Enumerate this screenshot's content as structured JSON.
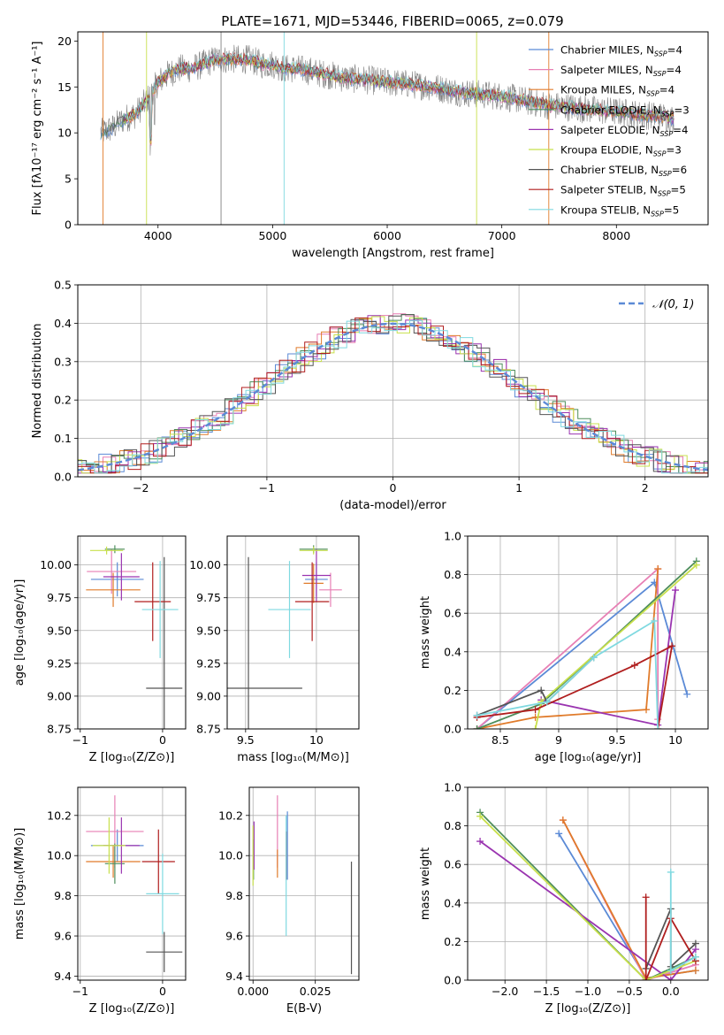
{
  "title": "PLATE=1671, MJD=53446, FIBERID=0065, z=0.079",
  "colors": {
    "Chabrier MILES": "#5b8ad6",
    "Salpeter MILES": "#e77fb4",
    "Kroupa MILES": "#e07b2b",
    "Chabrier ELODIE": "#4e8e5c",
    "Salpeter ELODIE": "#9a34b0",
    "Kroupa ELODIE": "#c8e04c",
    "Chabrier STELIB": "#555555",
    "Salpeter STELIB": "#b01e1e",
    "Kroupa STELIB": "#7fd9e0"
  },
  "chart_data": [
    {
      "id": "spectrum",
      "type": "line",
      "xlabel": "wavelength [Angstrom, rest frame]",
      "ylabel": "Flux [fλ10⁻¹⁷ erg cm⁻² s⁻¹ A⁻¹]",
      "xlim": [
        3300,
        8800
      ],
      "ylim": [
        0,
        21
      ],
      "xticks": [
        4000,
        5000,
        6000,
        7000,
        8000
      ],
      "yticks": [
        0,
        5,
        10,
        15,
        20
      ],
      "legend_position": "top-right",
      "legend": [
        {
          "model": "Chabrier MILES",
          "label": "Chabrier MILES, N",
          "sub": "SSP",
          "tail": "=4"
        },
        {
          "model": "Salpeter MILES",
          "label": "Salpeter MILES, N",
          "sub": "SSP",
          "tail": "=4"
        },
        {
          "model": "Kroupa MILES",
          "label": "Kroupa MILES, N",
          "sub": "SSP",
          "tail": "=4"
        },
        {
          "model": "Chabrier ELODIE",
          "label": "Chabrier ELODIE, N",
          "sub": "SSP",
          "tail": "=3"
        },
        {
          "model": "Salpeter ELODIE",
          "label": "Salpeter ELODIE, N",
          "sub": "SSP",
          "tail": "=4"
        },
        {
          "model": "Kroupa ELODIE",
          "label": "Kroupa ELODIE, N",
          "sub": "SSP",
          "tail": "=3"
        },
        {
          "model": "Chabrier STELIB",
          "label": "Chabrier STELIB, N",
          "sub": "SSP",
          "tail": "=6"
        },
        {
          "model": "Salpeter STELIB",
          "label": "Salpeter STELIB, N",
          "sub": "SSP",
          "tail": "=5"
        },
        {
          "model": "Kroupa STELIB",
          "label": "Kroupa STELIB, N",
          "sub": "SSP",
          "tail": "=5"
        }
      ],
      "continuum": [
        [
          3500,
          10.0
        ],
        [
          3600,
          10.5
        ],
        [
          3700,
          11.5
        ],
        [
          3800,
          12.0
        ],
        [
          3900,
          13.5
        ],
        [
          4000,
          15.5
        ],
        [
          4100,
          16.5
        ],
        [
          4200,
          17.0
        ],
        [
          4300,
          17.0
        ],
        [
          4400,
          17.5
        ],
        [
          4500,
          18.0
        ],
        [
          4600,
          18.0
        ],
        [
          4700,
          18.0
        ],
        [
          4800,
          18.0
        ],
        [
          4900,
          17.5
        ],
        [
          5000,
          17.5
        ],
        [
          5100,
          17.0
        ],
        [
          5200,
          17.0
        ],
        [
          5300,
          16.8
        ],
        [
          5400,
          16.5
        ],
        [
          5500,
          16.3
        ],
        [
          5600,
          16.0
        ],
        [
          5800,
          15.8
        ],
        [
          6000,
          15.5
        ],
        [
          6200,
          15.3
        ],
        [
          6400,
          15.0
        ],
        [
          6600,
          14.5
        ],
        [
          6800,
          14.2
        ],
        [
          7000,
          14.0
        ],
        [
          7200,
          13.5
        ],
        [
          7400,
          13.0
        ],
        [
          7600,
          12.8
        ],
        [
          7800,
          12.5
        ],
        [
          8000,
          12.3
        ],
        [
          8200,
          12.0
        ],
        [
          8400,
          11.8
        ],
        [
          8500,
          11.5
        ]
      ]
    },
    {
      "id": "residuals",
      "type": "histogram",
      "xlabel": "(data-model)/error",
      "ylabel": "Normed distribution",
      "xlim": [
        -2.5,
        2.5
      ],
      "ylim": [
        0,
        0.5
      ],
      "xticks": [
        -2,
        -1,
        0,
        1,
        2
      ],
      "yticks": [
        0.0,
        0.1,
        0.2,
        0.3,
        0.4,
        0.5
      ],
      "grid": true,
      "legend_position": "top-right",
      "reference": {
        "name": "𝒩(0, 1)",
        "mean": 0,
        "sigma": 1
      }
    },
    {
      "id": "age-vs-Z",
      "type": "errorbar",
      "xlabel": "Z [log₁₀(Z/Z⊙)]",
      "ylabel": "age  [log₁₀(age/yr)]",
      "xlim": [
        -1.03,
        0.28
      ],
      "ylim": [
        8.75,
        10.22
      ],
      "xticks": [
        -1,
        0
      ],
      "yticks": [
        8.75,
        9.0,
        9.25,
        9.5,
        9.75,
        10.0
      ],
      "grid": true,
      "points": [
        {
          "model": "Chabrier MILES",
          "x": -0.55,
          "xerr": 0.32,
          "y": 9.89,
          "yerr": 0.13
        },
        {
          "model": "Salpeter MILES",
          "x": -0.62,
          "xerr": 0.3,
          "y": 9.95,
          "yerr": 0.17
        },
        {
          "model": "Kroupa MILES",
          "x": -0.6,
          "xerr": 0.33,
          "y": 9.81,
          "yerr": 0.13
        },
        {
          "model": "Chabrier ELODIE",
          "x": -0.58,
          "xerr": 0.12,
          "y": 10.12,
          "yerr": 0.03
        },
        {
          "model": "Salpeter ELODIE",
          "x": -0.5,
          "xerr": 0.22,
          "y": 9.91,
          "yerr": 0.18
        },
        {
          "model": "Kroupa ELODIE",
          "x": -0.68,
          "xerr": 0.2,
          "y": 10.11,
          "yerr": 0.03
        },
        {
          "model": "Chabrier STELIB",
          "x": 0.02,
          "xerr": 0.22,
          "y": 9.06,
          "yerr": 1.0
        },
        {
          "model": "Salpeter STELIB",
          "x": -0.12,
          "xerr": 0.22,
          "y": 9.72,
          "yerr": 0.3
        },
        {
          "model": "Kroupa STELIB",
          "x": -0.03,
          "xerr": 0.22,
          "y": 9.66,
          "yerr": 0.37
        }
      ]
    },
    {
      "id": "age-vs-mass",
      "type": "errorbar",
      "xlabel": "mass [log₁₀(M/M⊙)]",
      "ylabel": "",
      "xlim": [
        9.37,
        10.3
      ],
      "ylim": [
        8.75,
        10.22
      ],
      "xticks": [
        9.5,
        10.0
      ],
      "yticks": [
        8.75,
        9.0,
        9.25,
        9.5,
        9.75,
        10.0
      ],
      "grid": true,
      "points": [
        {
          "model": "Chabrier MILES",
          "x": 10.0,
          "xerr": 0.08,
          "y": 9.89,
          "yerr": 0.13
        },
        {
          "model": "Salpeter MILES",
          "x": 10.1,
          "xerr": 0.08,
          "y": 9.81,
          "yerr": 0.13
        },
        {
          "model": "Kroupa MILES",
          "x": 9.98,
          "xerr": 0.07,
          "y": 9.86,
          "yerr": 0.15
        },
        {
          "model": "Chabrier ELODIE",
          "x": 9.98,
          "xerr": 0.1,
          "y": 10.12,
          "yerr": 0.03
        },
        {
          "model": "Salpeter ELODIE",
          "x": 10.0,
          "xerr": 0.1,
          "y": 9.92,
          "yerr": 0.2
        },
        {
          "model": "Kroupa ELODIE",
          "x": 9.98,
          "xerr": 0.1,
          "y": 10.11,
          "yerr": 0.03
        },
        {
          "model": "Chabrier STELIB",
          "x": 9.52,
          "xerr": 0.38,
          "y": 9.06,
          "yerr": 1.0
        },
        {
          "model": "Salpeter STELIB",
          "x": 9.97,
          "xerr": 0.12,
          "y": 9.72,
          "yerr": 0.3
        },
        {
          "model": "Kroupa STELIB",
          "x": 9.81,
          "xerr": 0.15,
          "y": 9.66,
          "yerr": 0.37
        }
      ]
    },
    {
      "id": "mass-vs-Z",
      "type": "errorbar",
      "xlabel": "Z [log₁₀(Z/Z⊙)]",
      "ylabel": "mass [log₁₀(M/M⊙)]",
      "xlim": [
        -1.03,
        0.28
      ],
      "ylim": [
        9.38,
        10.34
      ],
      "xticks": [
        -1,
        0
      ],
      "yticks": [
        9.4,
        9.6,
        9.8,
        10.0,
        10.2
      ],
      "grid": true,
      "points": [
        {
          "model": "Chabrier MILES",
          "x": -0.55,
          "xerr": 0.32,
          "y": 10.05,
          "yerr": 0.08
        },
        {
          "model": "Salpeter MILES",
          "x": -0.58,
          "xerr": 0.35,
          "y": 10.12,
          "yerr": 0.18
        },
        {
          "model": "Kroupa MILES",
          "x": -0.6,
          "xerr": 0.33,
          "y": 9.97,
          "yerr": 0.08
        },
        {
          "model": "Chabrier ELODIE",
          "x": -0.58,
          "xerr": 0.12,
          "y": 9.96,
          "yerr": 0.1
        },
        {
          "model": "Salpeter ELODIE",
          "x": -0.5,
          "xerr": 0.22,
          "y": 10.05,
          "yerr": 0.14
        },
        {
          "model": "Kroupa ELODIE",
          "x": -0.65,
          "xerr": 0.2,
          "y": 10.05,
          "yerr": 0.14
        },
        {
          "model": "Chabrier STELIB",
          "x": 0.02,
          "xerr": 0.22,
          "y": 9.52,
          "yerr": 0.1
        },
        {
          "model": "Salpeter STELIB",
          "x": -0.05,
          "xerr": 0.2,
          "y": 9.97,
          "yerr": 0.16
        },
        {
          "model": "Kroupa STELIB",
          "x": 0.0,
          "xerr": 0.2,
          "y": 9.81,
          "yerr": 0.2
        }
      ]
    },
    {
      "id": "mass-vs-EBV",
      "type": "errorbar",
      "xlabel": "E(B-V)",
      "ylabel": "",
      "xlim": [
        -0.0015,
        0.0425
      ],
      "ylim": [
        9.38,
        10.34
      ],
      "xticks": [
        0.0,
        0.025
      ],
      "xtick_labels": [
        "0.000",
        "0.025"
      ],
      "yticks": [
        9.4,
        9.6,
        9.8,
        10.0,
        10.2
      ],
      "grid": true,
      "points": [
        {
          "model": "Chabrier MILES",
          "x": 0.0138,
          "xerr": 0,
          "y": 10.05,
          "yerr": 0.17
        },
        {
          "model": "Salpeter MILES",
          "x": 0.0098,
          "xerr": 0,
          "y": 10.12,
          "yerr": 0.18
        },
        {
          "model": "Kroupa MILES",
          "x": 0.0098,
          "xerr": 0,
          "y": 9.96,
          "yerr": 0.07
        },
        {
          "model": "Chabrier ELODIE",
          "x": 0.0002,
          "xerr": 0,
          "y": 9.98,
          "yerr": 0.1
        },
        {
          "model": "Salpeter ELODIE",
          "x": 0.0004,
          "xerr": 0,
          "y": 10.05,
          "yerr": 0.12
        },
        {
          "model": "Kroupa ELODIE",
          "x": 0.0,
          "xerr": 0,
          "y": 10.0,
          "yerr": 0.15
        },
        {
          "model": "Chabrier STELIB",
          "x": 0.0395,
          "xerr": 0,
          "y": 9.69,
          "yerr": 0.28
        },
        {
          "model": "Salpeter STELIB",
          "x": 0.0133,
          "xerr": 0,
          "y": 10.0,
          "yerr": 0.12
        },
        {
          "model": "Kroupa STELIB",
          "x": 0.0133,
          "xerr": 0,
          "y": 9.9,
          "yerr": 0.3
        }
      ]
    },
    {
      "id": "weight-vs-age",
      "type": "line",
      "xlabel": "age  [log₁₀(age/yr)]",
      "ylabel": "mass weight",
      "xlim": [
        8.22,
        10.28
      ],
      "ylim": [
        0.0,
        1.0
      ],
      "xticks": [
        8.5,
        9.0,
        9.5,
        10.0
      ],
      "yticks": [
        0.0,
        0.2,
        0.4,
        0.6,
        0.8,
        1.0
      ],
      "grid": true,
      "series": [
        {
          "model": "Chabrier MILES",
          "points": [
            [
              8.3,
              0.0
            ],
            [
              9.82,
              0.76
            ],
            [
              10.1,
              0.18
            ]
          ]
        },
        {
          "model": "Salpeter MILES",
          "points": [
            [
              8.3,
              0.0
            ],
            [
              9.85,
              0.83
            ],
            [
              9.85,
              0.05
            ]
          ]
        },
        {
          "model": "Kroupa MILES",
          "points": [
            [
              8.3,
              0.0
            ],
            [
              8.8,
              0.06
            ],
            [
              9.75,
              0.1
            ],
            [
              9.85,
              0.83
            ]
          ]
        },
        {
          "model": "Chabrier ELODIE",
          "points": [
            [
              8.3,
              0.0
            ],
            [
              8.85,
              0.13
            ],
            [
              10.18,
              0.87
            ]
          ]
        },
        {
          "model": "Salpeter ELODIE",
          "points": [
            [
              8.85,
              0.15
            ],
            [
              9.85,
              0.02
            ],
            [
              10.0,
              0.72
            ]
          ]
        },
        {
          "model": "Kroupa ELODIE",
          "points": [
            [
              8.8,
              0.0
            ],
            [
              8.85,
              0.14
            ],
            [
              10.18,
              0.85
            ]
          ]
        },
        {
          "model": "Chabrier STELIB",
          "points": [
            [
              8.3,
              0.07
            ],
            [
              8.85,
              0.2
            ],
            [
              8.9,
              0.14
            ],
            [
              9.3,
              0.37
            ]
          ]
        },
        {
          "model": "Salpeter STELIB",
          "points": [
            [
              8.3,
              0.06
            ],
            [
              8.8,
              0.1
            ],
            [
              9.65,
              0.33
            ],
            [
              9.97,
              0.43
            ],
            [
              9.85,
              0.0
            ]
          ]
        },
        {
          "model": "Kroupa STELIB",
          "points": [
            [
              8.3,
              0.07
            ],
            [
              8.9,
              0.14
            ],
            [
              9.3,
              0.37
            ],
            [
              9.82,
              0.56
            ],
            [
              9.85,
              0.0
            ]
          ]
        }
      ]
    },
    {
      "id": "weight-vs-Z",
      "type": "line",
      "xlabel": "Z [log₁₀(Z/Z⊙)]",
      "ylabel": "mass weight",
      "xlim": [
        -2.45,
        0.45
      ],
      "ylim": [
        0.0,
        1.0
      ],
      "xticks": [
        -2.0,
        -1.5,
        -1.0,
        -0.5,
        0.0
      ],
      "xtick_labels": [
        "−2.0",
        "−1.5",
        "−1.0",
        "−0.5",
        "0.0"
      ],
      "yticks": [
        0.0,
        0.2,
        0.4,
        0.6,
        0.8,
        1.0
      ],
      "grid": true,
      "series": [
        {
          "model": "Chabrier MILES",
          "points": [
            [
              -1.35,
              0.76
            ],
            [
              -0.3,
              0.01
            ],
            [
              0.3,
              0.05
            ]
          ]
        },
        {
          "model": "Salpeter MILES",
          "points": [
            [
              -1.3,
              0.83
            ],
            [
              -0.3,
              0.0
            ],
            [
              0.3,
              0.08
            ]
          ]
        },
        {
          "model": "Kroupa MILES",
          "points": [
            [
              -1.3,
              0.83
            ],
            [
              -0.3,
              0.01
            ],
            [
              0.3,
              0.05
            ]
          ]
        },
        {
          "model": "Chabrier ELODIE",
          "points": [
            [
              -2.3,
              0.87
            ],
            [
              -0.3,
              0.0
            ],
            [
              0.3,
              0.12
            ]
          ]
        },
        {
          "model": "Salpeter ELODIE",
          "points": [
            [
              -2.3,
              0.72
            ],
            [
              0.0,
              0.0
            ],
            [
              0.3,
              0.16
            ]
          ]
        },
        {
          "model": "Kroupa ELODIE",
          "points": [
            [
              -2.3,
              0.85
            ],
            [
              -0.3,
              0.0
            ],
            [
              0.3,
              0.1
            ]
          ]
        },
        {
          "model": "Chabrier STELIB",
          "points": [
            [
              -0.3,
              0.06
            ],
            [
              0.0,
              0.37
            ],
            [
              0.0,
              0.07
            ],
            [
              0.3,
              0.19
            ]
          ]
        },
        {
          "model": "Salpeter STELIB",
          "points": [
            [
              -0.3,
              0.43
            ],
            [
              -0.3,
              0.0
            ],
            [
              0.0,
              0.32
            ],
            [
              0.3,
              0.1
            ]
          ]
        },
        {
          "model": "Kroupa STELIB",
          "points": [
            [
              0.0,
              0.56
            ],
            [
              0.0,
              0.05
            ],
            [
              0.3,
              0.12
            ]
          ]
        }
      ]
    }
  ]
}
